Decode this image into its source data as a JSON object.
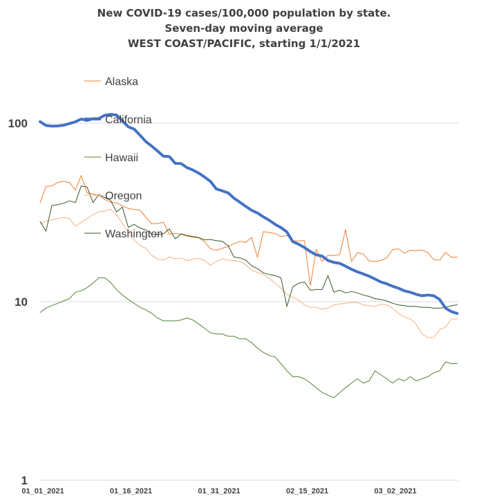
{
  "chart_data": {
    "type": "line",
    "title_lines": [
      "New COVID-19 cases/100,000 population by state.",
      "Seven-day moving average",
      "WEST COAST/PACIFIC, starting 1/1/2021"
    ],
    "y_scale": "log",
    "ylim": [
      1,
      100
    ],
    "y_ticks": [
      "100",
      "10",
      "1"
    ],
    "y_tick_values": [
      100,
      10,
      1
    ],
    "grid": "horizontal",
    "x_start": "01_01_2021",
    "x_end": "03_18_2021",
    "x_ticks": [
      "01_01_2021",
      "01_16_2021",
      "01_31_2021",
      "02_15_2021",
      "03_02_2021"
    ],
    "x_tick_days": [
      0,
      15,
      30,
      45,
      60
    ],
    "legend_placement": "upper-left",
    "series": [
      {
        "name": "Alaska",
        "color": "#ED7D31",
        "width": 1,
        "values": [
          35.8,
          44.2,
          44.5,
          46.6,
          47.2,
          46.5,
          42.2,
          50.9,
          40.7,
          40.2,
          39.4,
          37.4,
          36.1,
          35.8,
          34.4,
          33.3,
          32.9,
          32.5,
          29.7,
          27.4,
          27.4,
          27.8,
          23.9,
          24.1,
          23.9,
          23.3,
          23.0,
          22.8,
          21.7,
          19.8,
          19.4,
          19.9,
          20.4,
          21.1,
          21.8,
          21.5,
          22.9,
          17.7,
          24.7,
          24.4,
          24.1,
          23.2,
          23.5,
          22.0,
          21.9,
          22.0,
          12.3,
          19.6,
          16.8,
          18.2,
          18.1,
          18.4,
          25.4,
          16.8,
          18.8,
          18.5,
          16.9,
          16.8,
          17.0,
          17.6,
          19.6,
          19.8,
          18.7,
          19.4,
          19.3,
          19.5,
          18.8,
          17.2,
          17.1,
          18.9,
          17.7,
          17.8
        ]
      },
      {
        "name": "California",
        "color": "#4472C4",
        "width": 4,
        "values": [
          102,
          97.1,
          96.3,
          96.5,
          97.4,
          99.5,
          101.8,
          105.4,
          103.5,
          106.0,
          106.1,
          110.7,
          112.0,
          111.1,
          103.1,
          95.5,
          92.7,
          85.6,
          78.8,
          74.4,
          69.8,
          65.3,
          65.0,
          59.6,
          59.4,
          56.4,
          54.7,
          52.5,
          49.9,
          47.2,
          42.8,
          41.8,
          40.7,
          38.0,
          36.1,
          34.2,
          32.5,
          31.4,
          29.9,
          28.6,
          27.1,
          26.0,
          24.6,
          21.7,
          21.0,
          20.1,
          19.1,
          18.3,
          18.0,
          17.0,
          16.6,
          16.4,
          15.8,
          15.2,
          14.7,
          14.3,
          13.9,
          13.4,
          12.9,
          12.6,
          12.2,
          11.9,
          11.5,
          11.3,
          11.0,
          10.8,
          10.9,
          10.8,
          10.3,
          9.2,
          8.8,
          8.6
        ]
      },
      {
        "name": "Hawaii",
        "color": "#548235",
        "width": 1,
        "values": [
          8.7,
          9.2,
          9.5,
          9.8,
          10.1,
          10.4,
          11.3,
          11.5,
          12.0,
          12.7,
          13.6,
          13.6,
          12.8,
          11.7,
          10.9,
          10.3,
          9.8,
          9.3,
          9.0,
          8.6,
          8.1,
          7.8,
          7.8,
          7.8,
          7.9,
          8.1,
          7.9,
          7.5,
          7.1,
          6.7,
          6.6,
          6.6,
          6.4,
          6.4,
          6.2,
          6.2,
          5.9,
          5.5,
          5.2,
          5.0,
          4.9,
          4.5,
          4.1,
          3.8,
          3.8,
          3.7,
          3.5,
          3.3,
          3.1,
          3.0,
          2.9,
          3.1,
          3.3,
          3.5,
          3.7,
          3.5,
          3.6,
          4.1,
          3.9,
          3.7,
          3.5,
          3.7,
          3.6,
          3.8,
          3.6,
          3.7,
          3.8,
          4.0,
          4.1,
          4.6,
          4.5,
          4.5
        ]
      },
      {
        "name": "Oregon",
        "color": "#F4B183",
        "width": 1,
        "values": [
          27.2,
          28.2,
          28.8,
          29.2,
          29.6,
          29.2,
          26.5,
          27.8,
          29.2,
          30.7,
          31.9,
          32.2,
          33.0,
          30.7,
          27.5,
          24.6,
          22.1,
          20.7,
          19.9,
          18.2,
          17.3,
          17.1,
          17.8,
          17.4,
          17.6,
          17.0,
          17.3,
          17.5,
          17.0,
          16.0,
          16.8,
          17.4,
          17.1,
          17.0,
          16.8,
          16.1,
          15.0,
          14.6,
          14.2,
          13.5,
          12.7,
          11.9,
          11.0,
          10.6,
          10.2,
          9.6,
          9.3,
          9.3,
          9.1,
          9.2,
          9.6,
          9.7,
          9.8,
          9.9,
          9.9,
          9.6,
          9.5,
          9.4,
          9.7,
          9.6,
          9.2,
          8.6,
          8.2,
          8.0,
          7.5,
          6.6,
          6.3,
          6.3,
          7.0,
          7.2,
          8.0,
          8.0
        ]
      },
      {
        "name": "Washington",
        "color": "#375623",
        "width": 1,
        "values": [
          28.2,
          24.8,
          34.6,
          34.9,
          35.6,
          36.7,
          35.9,
          44.5,
          43.9,
          35.9,
          39.9,
          38.3,
          37.0,
          31.8,
          33.9,
          26.1,
          27.1,
          25.9,
          25.2,
          23.9,
          23.8,
          24.0,
          25.6,
          22.5,
          24.0,
          23.5,
          23.2,
          22.9,
          22.2,
          22.3,
          22.0,
          21.8,
          20.6,
          17.8,
          17.6,
          17.1,
          15.9,
          15.3,
          14.5,
          14.2,
          14.0,
          13.6,
          9.4,
          12.1,
          12.7,
          12.9,
          11.6,
          11.7,
          11.7,
          14.0,
          11.3,
          11.6,
          11.2,
          11.4,
          11.2,
          10.9,
          10.7,
          10.4,
          10.3,
          10.1,
          9.8,
          9.6,
          9.5,
          9.4,
          9.4,
          9.3,
          9.3,
          9.2,
          9.2,
          9.3,
          9.5,
          9.6
        ]
      }
    ]
  }
}
